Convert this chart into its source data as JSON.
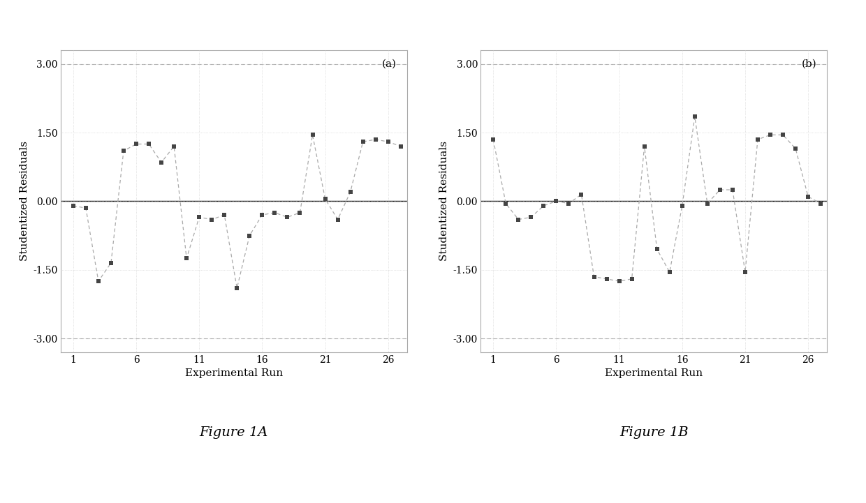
{
  "plot_a_label": "(a)",
  "plot_b_label": "(b)",
  "xlabel": "Experimental Run",
  "ylabel": "Studentized Residuals",
  "figure_label_a": "Figure 1A",
  "figure_label_b": "Figure 1B",
  "ylim": [
    -3.3,
    3.3
  ],
  "yticks": [
    -3.0,
    -1.5,
    0.0,
    1.5,
    3.0
  ],
  "ytick_labels": [
    "-3.00",
    "-1.50",
    "0.00",
    "1.50",
    "3.00"
  ],
  "xticks": [
    1,
    6,
    11,
    16,
    21,
    26
  ],
  "xlim": [
    0.0,
    27.5
  ],
  "hline_y3": 3.0,
  "hline_ym3": -3.0,
  "data_a": {
    "x": [
      1,
      2,
      3,
      4,
      5,
      6,
      7,
      8,
      9,
      10,
      11,
      12,
      13,
      14,
      15,
      16,
      17,
      18,
      19,
      20,
      21,
      22,
      23,
      24,
      25,
      26,
      27
    ],
    "y": [
      -0.1,
      -0.15,
      -1.75,
      -1.35,
      1.1,
      1.25,
      1.25,
      0.85,
      1.2,
      -1.25,
      -0.35,
      -0.4,
      -0.3,
      -1.9,
      -0.75,
      -0.3,
      -0.25,
      -0.35,
      -0.25,
      1.45,
      0.05,
      -0.4,
      0.2,
      1.3,
      1.35,
      1.3,
      1.2
    ]
  },
  "data_b": {
    "x": [
      1,
      2,
      3,
      4,
      5,
      6,
      7,
      8,
      9,
      10,
      11,
      12,
      13,
      14,
      15,
      16,
      17,
      18,
      19,
      20,
      21,
      22,
      23,
      24,
      25,
      26,
      27
    ],
    "y": [
      1.35,
      -0.05,
      -0.4,
      -0.35,
      -0.1,
      0.0,
      -0.05,
      0.15,
      -1.65,
      -1.7,
      -1.75,
      -1.7,
      1.2,
      -1.05,
      -1.55,
      -0.1,
      1.85,
      -0.05,
      0.25,
      0.25,
      -1.55,
      1.35,
      1.45,
      1.45,
      1.15,
      0.1,
      -0.05
    ]
  },
  "line_color": "#aaaaaa",
  "marker_color": "#444444",
  "bg_color": "#ffffff",
  "plot_bg_color": "#ffffff",
  "border_color": "#aaaaaa",
  "grid_color": "#cccccc",
  "hline_color": "#888888",
  "zero_line_color": "#000000",
  "ref_line_color": "#aaaaaa"
}
